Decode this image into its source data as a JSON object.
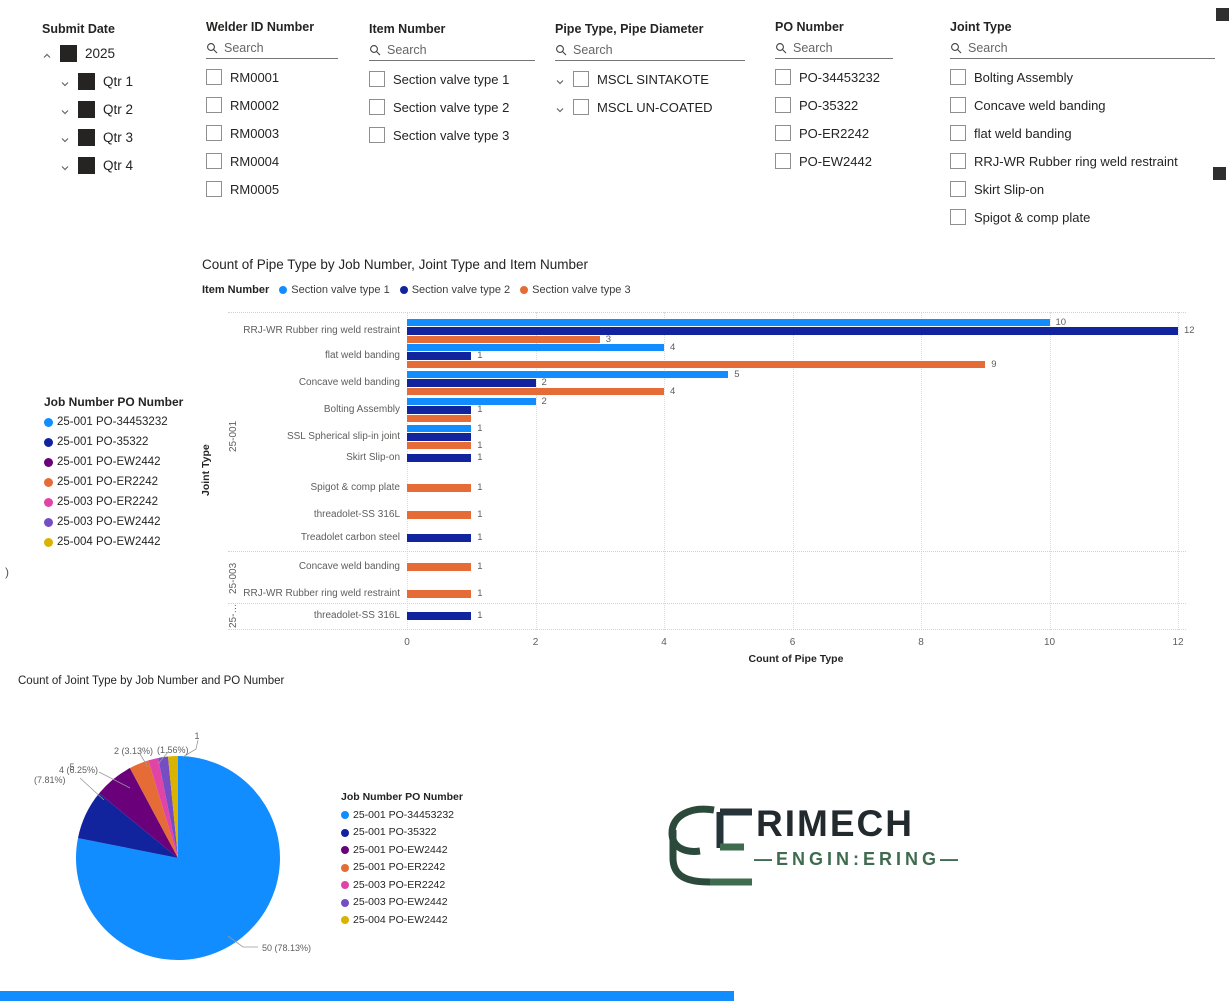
{
  "slicers": [
    {
      "name": "submit-date",
      "title": "Submit Date",
      "type": "tree",
      "items": [
        {
          "label": "2025",
          "level": 0,
          "caret": "up",
          "checked": true
        },
        {
          "label": "Qtr 1",
          "level": 1,
          "caret": "down",
          "checked": true
        },
        {
          "label": "Qtr 2",
          "level": 1,
          "caret": "down",
          "checked": true
        },
        {
          "label": "Qtr 3",
          "level": 1,
          "caret": "down",
          "checked": true
        },
        {
          "label": "Qtr 4",
          "level": 1,
          "caret": "down",
          "checked": true
        }
      ]
    },
    {
      "name": "welder-id-number",
      "title": "Welder ID Number",
      "search_placeholder": "Search",
      "items": [
        {
          "label": "RM0001"
        },
        {
          "label": "RM0002"
        },
        {
          "label": "RM0003"
        },
        {
          "label": "RM0004"
        },
        {
          "label": "RM0005"
        }
      ]
    },
    {
      "name": "item-number",
      "title": "Item Number",
      "search_placeholder": "Search",
      "items": [
        {
          "label": "Section valve type 1"
        },
        {
          "label": "Section valve type 2"
        },
        {
          "label": "Section valve type 3"
        }
      ]
    },
    {
      "name": "pipe-type",
      "title": "Pipe Type, Pipe Diameter",
      "search_placeholder": "Search",
      "items": [
        {
          "label": "MSCL SINTAKOTE",
          "caret": "down"
        },
        {
          "label": "MSCL UN-COATED",
          "caret": "down"
        }
      ]
    },
    {
      "name": "po-number",
      "title": "PO Number",
      "search_placeholder": "Search",
      "items": [
        {
          "label": "PO-34453232"
        },
        {
          "label": "PO-35322"
        },
        {
          "label": "PO-ER2242"
        },
        {
          "label": "PO-EW2442"
        }
      ]
    },
    {
      "name": "joint-type",
      "title": "Joint Type",
      "search_placeholder": "Search",
      "items": [
        {
          "label": "Bolting Assembly"
        },
        {
          "label": "Concave weld banding"
        },
        {
          "label": "flat weld banding"
        },
        {
          "label": "RRJ-WR Rubber ring weld restraint"
        },
        {
          "label": "Skirt Slip-on"
        },
        {
          "label": "Spigot & comp plate"
        }
      ]
    }
  ],
  "po_legend": {
    "title": "Job Number PO Number"
  },
  "chart_data": [
    {
      "type": "bar",
      "orientation": "horizontal",
      "title": "Count of Pipe Type by Job Number, Joint Type and Item Number",
      "legend_title": "Item Number",
      "series": [
        {
          "name": "Section valve type 1",
          "color": "#118DFF"
        },
        {
          "name": "Section valve type 2",
          "color": "#12239E"
        },
        {
          "name": "Section valve type 3",
          "color": "#E66C37"
        }
      ],
      "xlabel": "Count of Pipe Type",
      "ylabel": "Joint Type",
      "xlim": [
        0,
        12
      ],
      "x_ticks": [
        0,
        2,
        4,
        6,
        8,
        10,
        12
      ],
      "group_labels": [
        "25-001",
        "25-003",
        "25-…"
      ],
      "rows": [
        {
          "group": "25-001",
          "category": "RRJ-WR Rubber ring weld restraint",
          "values": [
            10,
            12,
            3
          ],
          "labels": [
            "10",
            "12",
            "3"
          ]
        },
        {
          "group": "25-001",
          "category": "flat weld banding",
          "values": [
            4,
            1,
            9
          ],
          "labels": [
            "4",
            "1",
            "9"
          ]
        },
        {
          "group": "25-001",
          "category": "Concave weld banding",
          "values": [
            5,
            2,
            4
          ],
          "labels": [
            "5",
            "2",
            "4"
          ]
        },
        {
          "group": "25-001",
          "category": "Bolting Assembly",
          "values": [
            2,
            1,
            1
          ],
          "labels": [
            "2",
            "1",
            ""
          ]
        },
        {
          "group": "25-001",
          "category": "SSL Spherical slip-in joint",
          "values": [
            1,
            1,
            1
          ],
          "labels": [
            "1",
            "",
            "1"
          ]
        },
        {
          "group": "25-001",
          "category": "Skirt Slip-on",
          "values": [
            null,
            1,
            null
          ],
          "labels": [
            "",
            "1",
            ""
          ]
        },
        {
          "group": "25-001",
          "category": "Spigot & comp plate",
          "values": [
            null,
            null,
            1
          ],
          "labels": [
            "",
            "",
            "1"
          ]
        },
        {
          "group": "25-001",
          "category": "threadolet-SS 316L",
          "values": [
            null,
            null,
            1
          ],
          "labels": [
            "",
            "",
            "1"
          ]
        },
        {
          "group": "25-001",
          "category": "Treadolet carbon steel",
          "values": [
            null,
            1,
            null
          ],
          "labels": [
            "",
            "1",
            ""
          ]
        },
        {
          "group": "25-003",
          "category": "Concave weld banding",
          "values": [
            null,
            null,
            1
          ],
          "labels": [
            "",
            "",
            "1"
          ]
        },
        {
          "group": "25-003",
          "category": "RRJ-WR Rubber ring weld restraint",
          "values": [
            null,
            null,
            1
          ],
          "labels": [
            "",
            "",
            "1"
          ]
        },
        {
          "group": "25-…",
          "category": "threadolet-SS 316L",
          "values": [
            null,
            1,
            null
          ],
          "labels": [
            "",
            "1",
            ""
          ]
        }
      ]
    },
    {
      "type": "pie",
      "title": "Count of Joint Type by Job Number and PO Number",
      "legend_title": "Job Number PO Number",
      "slices": [
        {
          "label": "25-001 PO-34453232",
          "value": 50,
          "pct": "78.13%",
          "color": "#118DFF"
        },
        {
          "label": "25-001 PO-35322",
          "value": 5,
          "pct": "7.81%",
          "color": "#12239E"
        },
        {
          "label": "25-001 PO-EW2442",
          "value": 4,
          "pct": "6.25%",
          "color": "#6B007B"
        },
        {
          "label": "25-001 PO-ER2242",
          "value": 2,
          "pct": "3.13%",
          "color": "#E66C37"
        },
        {
          "label": "25-003 PO-ER2242",
          "value": 1,
          "pct": "1.56%",
          "color": "#E044A7"
        },
        {
          "label": "25-003 PO-EW2442",
          "value": 1,
          "pct": "1.56%",
          "color": "#744EC2"
        },
        {
          "label": "25-004 PO-EW2442",
          "value": 1,
          "pct": "1.56%",
          "color": "#D9B300"
        }
      ],
      "callouts": [
        "5",
        "(7.81%)",
        "4 (6.25%)",
        "2 (3.13%)",
        "(1.56%)",
        "1",
        "50 (78.13%)"
      ]
    }
  ],
  "logo": {
    "monogram": "RE",
    "name": "RIMECH",
    "subtitle": "—ENGIN:ERING—"
  },
  "misc": {
    "stray_text": ")"
  }
}
